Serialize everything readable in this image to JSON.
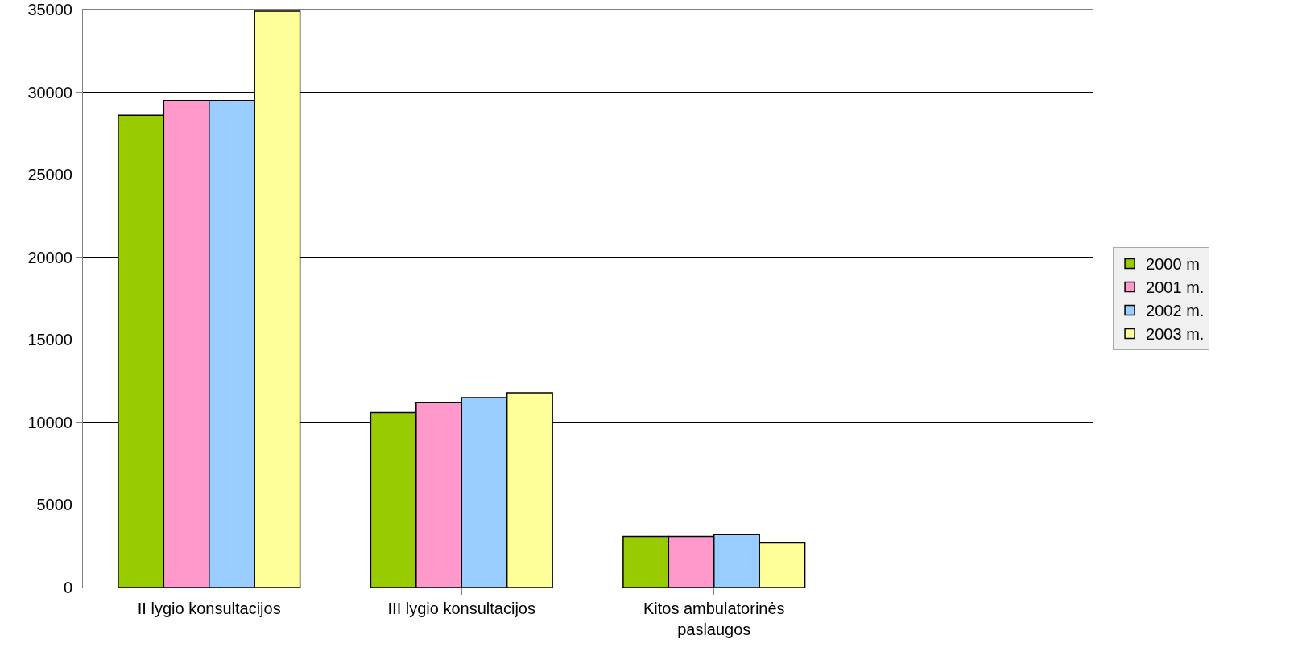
{
  "chart_data": {
    "type": "bar",
    "categories": [
      "II lygio konsultacijos",
      "III lygio konsultacijos",
      "Kitos ambulatorinės paslaugos",
      null
    ],
    "series": [
      {
        "name": "2000 m",
        "color": "#99cc00",
        "values": [
          28600,
          10600,
          3100,
          null
        ]
      },
      {
        "name": "2001 m.",
        "color": "#ff99cc",
        "values": [
          29500,
          11200,
          3100,
          null
        ]
      },
      {
        "name": "2002 m.",
        "color": "#99ccff",
        "values": [
          29500,
          11500,
          3200,
          null
        ]
      },
      {
        "name": "2003 m.",
        "color": "#ffff99",
        "values": [
          34900,
          11800,
          2700,
          null
        ]
      }
    ],
    "ylim": [
      0,
      35000
    ],
    "yticks": [
      0,
      5000,
      10000,
      15000,
      20000,
      25000,
      30000,
      35000
    ],
    "grid": "y",
    "legend": "right"
  }
}
